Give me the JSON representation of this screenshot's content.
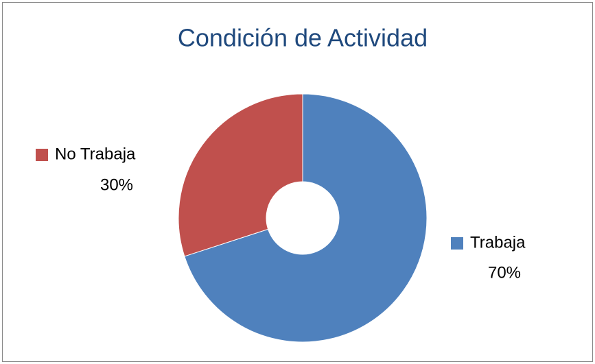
{
  "chart_data": {
    "type": "pie",
    "title": "Condición de Actividad",
    "categories": [
      "Trabaja",
      "No Trabaja"
    ],
    "values": [
      70,
      30
    ],
    "value_labels": [
      "70%",
      "30%"
    ],
    "colors": [
      "#4f81bd",
      "#c0504d"
    ],
    "donut": true
  }
}
